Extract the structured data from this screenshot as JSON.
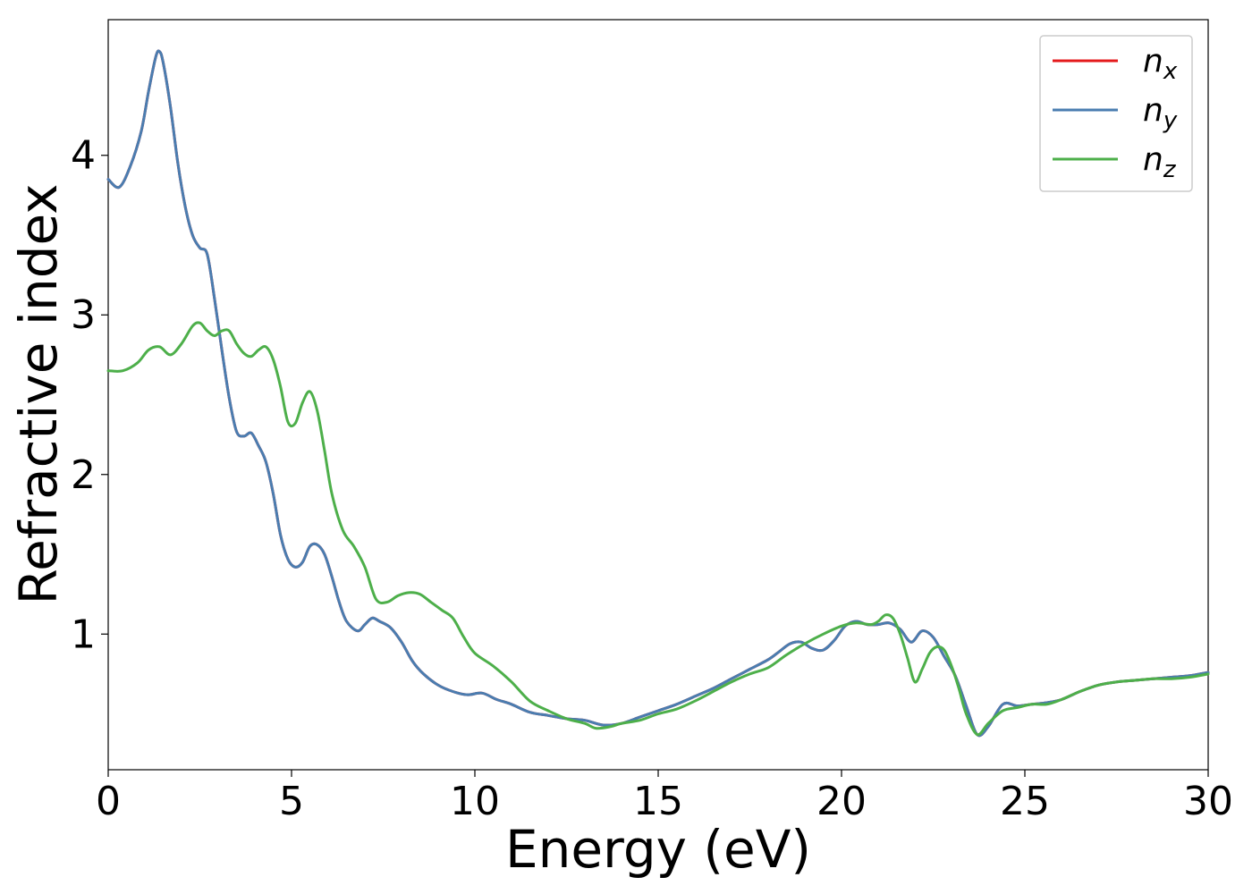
{
  "chart_data": {
    "type": "line",
    "xlabel": "Energy (eV)",
    "ylabel": "Refractive index",
    "xlim": [
      0,
      30
    ],
    "ylim": [
      0.15,
      4.85
    ],
    "xticks": [
      0,
      5,
      10,
      15,
      20,
      25,
      30
    ],
    "yticks": [
      1,
      2,
      3,
      4
    ],
    "grid": false,
    "legend_position": "top-right",
    "series": [
      {
        "name": "n",
        "subscript": "x",
        "color": "#e41a1c",
        "x": [
          0,
          0.3,
          0.6,
          0.9,
          1.1,
          1.3,
          1.4,
          1.5,
          1.7,
          1.9,
          2.1,
          2.3,
          2.5,
          2.7,
          2.9,
          3.1,
          3.3,
          3.5,
          3.7,
          3.9,
          4.1,
          4.3,
          4.5,
          4.7,
          4.9,
          5.1,
          5.3,
          5.5,
          5.7,
          5.9,
          6.1,
          6.3,
          6.5,
          6.8,
          7.0,
          7.2,
          7.4,
          7.7,
          8.0,
          8.3,
          8.6,
          9.0,
          9.4,
          9.8,
          10.2,
          10.6,
          11.0,
          11.5,
          12.0,
          12.5,
          13.0,
          13.5,
          14.0,
          14.5,
          15.0,
          15.5,
          16.0,
          16.5,
          17.0,
          17.5,
          18.0,
          18.3,
          18.6,
          18.9,
          19.2,
          19.5,
          19.8,
          20.1,
          20.4,
          20.7,
          21.0,
          21.3,
          21.6,
          21.9,
          22.2,
          22.5,
          22.8,
          23.1,
          23.4,
          23.7,
          24.0,
          24.4,
          24.8,
          25.2,
          25.6,
          26.0,
          26.5,
          27.0,
          27.5,
          28.0,
          28.5,
          29.0,
          29.5,
          30.0
        ],
        "y": [
          3.85,
          3.8,
          3.93,
          4.15,
          4.4,
          4.62,
          4.65,
          4.58,
          4.3,
          3.95,
          3.68,
          3.5,
          3.42,
          3.38,
          3.1,
          2.78,
          2.48,
          2.27,
          2.24,
          2.26,
          2.18,
          2.08,
          1.88,
          1.62,
          1.47,
          1.42,
          1.45,
          1.55,
          1.56,
          1.5,
          1.36,
          1.2,
          1.08,
          1.02,
          1.06,
          1.1,
          1.08,
          1.04,
          0.95,
          0.83,
          0.75,
          0.68,
          0.64,
          0.62,
          0.63,
          0.59,
          0.56,
          0.51,
          0.49,
          0.47,
          0.46,
          0.43,
          0.44,
          0.48,
          0.52,
          0.56,
          0.61,
          0.66,
          0.72,
          0.78,
          0.84,
          0.89,
          0.94,
          0.95,
          0.91,
          0.9,
          0.96,
          1.05,
          1.08,
          1.06,
          1.06,
          1.07,
          1.03,
          0.95,
          1.02,
          0.98,
          0.86,
          0.74,
          0.55,
          0.37,
          0.42,
          0.56,
          0.55,
          0.56,
          0.57,
          0.59,
          0.64,
          0.68,
          0.7,
          0.71,
          0.72,
          0.73,
          0.74,
          0.76
        ]
      },
      {
        "name": "n",
        "subscript": "y",
        "color": "#4a7db0",
        "x": [
          0,
          0.3,
          0.6,
          0.9,
          1.1,
          1.3,
          1.4,
          1.5,
          1.7,
          1.9,
          2.1,
          2.3,
          2.5,
          2.7,
          2.9,
          3.1,
          3.3,
          3.5,
          3.7,
          3.9,
          4.1,
          4.3,
          4.5,
          4.7,
          4.9,
          5.1,
          5.3,
          5.5,
          5.7,
          5.9,
          6.1,
          6.3,
          6.5,
          6.8,
          7.0,
          7.2,
          7.4,
          7.7,
          8.0,
          8.3,
          8.6,
          9.0,
          9.4,
          9.8,
          10.2,
          10.6,
          11.0,
          11.5,
          12.0,
          12.5,
          13.0,
          13.5,
          14.0,
          14.5,
          15.0,
          15.5,
          16.0,
          16.5,
          17.0,
          17.5,
          18.0,
          18.3,
          18.6,
          18.9,
          19.2,
          19.5,
          19.8,
          20.1,
          20.4,
          20.7,
          21.0,
          21.3,
          21.6,
          21.9,
          22.2,
          22.5,
          22.8,
          23.1,
          23.4,
          23.7,
          24.0,
          24.4,
          24.8,
          25.2,
          25.6,
          26.0,
          26.5,
          27.0,
          27.5,
          28.0,
          28.5,
          29.0,
          29.5,
          30.0
        ],
        "y": [
          3.85,
          3.8,
          3.93,
          4.15,
          4.4,
          4.62,
          4.65,
          4.58,
          4.3,
          3.95,
          3.68,
          3.5,
          3.42,
          3.38,
          3.1,
          2.78,
          2.48,
          2.27,
          2.24,
          2.26,
          2.18,
          2.08,
          1.88,
          1.62,
          1.47,
          1.42,
          1.45,
          1.55,
          1.56,
          1.5,
          1.36,
          1.2,
          1.08,
          1.02,
          1.06,
          1.1,
          1.08,
          1.04,
          0.95,
          0.83,
          0.75,
          0.68,
          0.64,
          0.62,
          0.63,
          0.59,
          0.56,
          0.51,
          0.49,
          0.47,
          0.46,
          0.43,
          0.44,
          0.48,
          0.52,
          0.56,
          0.61,
          0.66,
          0.72,
          0.78,
          0.84,
          0.89,
          0.94,
          0.95,
          0.91,
          0.9,
          0.96,
          1.05,
          1.08,
          1.06,
          1.06,
          1.07,
          1.03,
          0.95,
          1.02,
          0.98,
          0.86,
          0.74,
          0.55,
          0.37,
          0.42,
          0.56,
          0.55,
          0.56,
          0.57,
          0.59,
          0.64,
          0.68,
          0.7,
          0.71,
          0.72,
          0.73,
          0.74,
          0.76
        ]
      },
      {
        "name": "n",
        "subscript": "z",
        "color": "#4daf4a",
        "x": [
          0,
          0.4,
          0.8,
          1.1,
          1.4,
          1.7,
          2.0,
          2.3,
          2.5,
          2.7,
          2.9,
          3.1,
          3.3,
          3.5,
          3.7,
          3.9,
          4.1,
          4.3,
          4.5,
          4.7,
          4.9,
          5.1,
          5.3,
          5.5,
          5.7,
          5.9,
          6.1,
          6.4,
          6.7,
          7.0,
          7.3,
          7.6,
          7.9,
          8.2,
          8.5,
          8.8,
          9.1,
          9.4,
          9.7,
          10.0,
          10.5,
          11.0,
          11.5,
          12.0,
          12.5,
          13.0,
          13.3,
          13.7,
          14.0,
          14.5,
          15.0,
          15.5,
          16.0,
          16.5,
          17.0,
          17.5,
          18.0,
          18.5,
          19.0,
          19.5,
          20.0,
          20.4,
          20.8,
          21.0,
          21.2,
          21.4,
          21.6,
          21.8,
          22.0,
          22.2,
          22.4,
          22.6,
          22.8,
          23.0,
          23.2,
          23.4,
          23.7,
          24.0,
          24.4,
          24.8,
          25.2,
          25.6,
          26.0,
          26.5,
          27.0,
          27.5,
          28.0,
          28.5,
          29.0,
          29.5,
          30.0
        ],
        "y": [
          2.65,
          2.65,
          2.7,
          2.78,
          2.8,
          2.75,
          2.82,
          2.93,
          2.95,
          2.9,
          2.87,
          2.9,
          2.9,
          2.82,
          2.76,
          2.74,
          2.78,
          2.8,
          2.72,
          2.55,
          2.33,
          2.32,
          2.45,
          2.52,
          2.4,
          2.15,
          1.88,
          1.65,
          1.55,
          1.42,
          1.22,
          1.2,
          1.24,
          1.26,
          1.25,
          1.2,
          1.15,
          1.1,
          0.98,
          0.88,
          0.8,
          0.7,
          0.58,
          0.52,
          0.47,
          0.44,
          0.41,
          0.42,
          0.44,
          0.46,
          0.5,
          0.53,
          0.58,
          0.64,
          0.7,
          0.75,
          0.79,
          0.87,
          0.94,
          1.0,
          1.05,
          1.07,
          1.06,
          1.08,
          1.12,
          1.1,
          1.0,
          0.85,
          0.7,
          0.78,
          0.88,
          0.92,
          0.9,
          0.8,
          0.66,
          0.5,
          0.37,
          0.44,
          0.52,
          0.54,
          0.56,
          0.56,
          0.59,
          0.64,
          0.68,
          0.7,
          0.71,
          0.72,
          0.72,
          0.73,
          0.75
        ]
      }
    ]
  }
}
